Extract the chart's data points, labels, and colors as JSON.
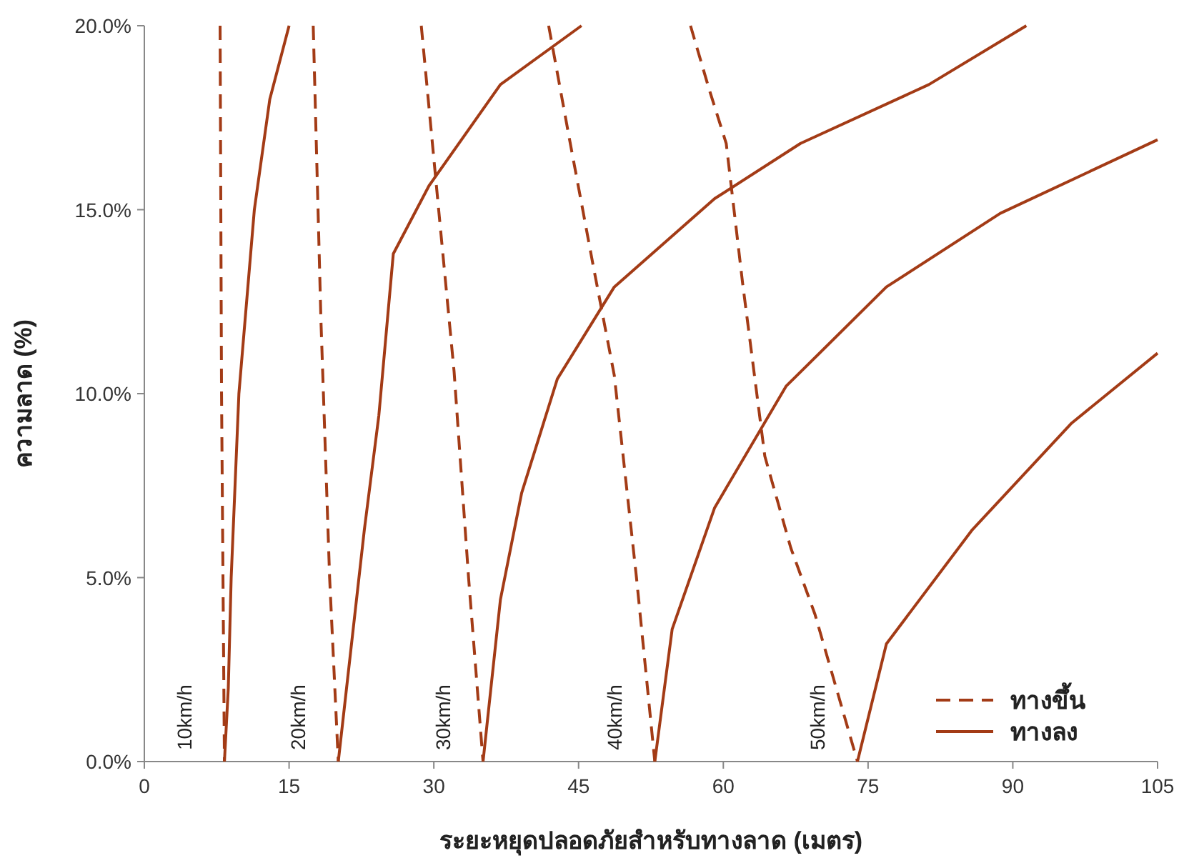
{
  "chart_data": {
    "type": "line",
    "xlabel": "ระยะหยุดปลอดภัยสำหรับทางลาด (เมตร)",
    "ylabel": "ความลาด (%)",
    "xlim": [
      0,
      105
    ],
    "ylim": [
      0,
      20
    ],
    "xticks": [
      0,
      15,
      30,
      45,
      60,
      75,
      90,
      105
    ],
    "yticks": [
      {
        "value": 0,
        "label": "0.0%"
      },
      {
        "value": 5,
        "label": "5.0%"
      },
      {
        "value": 10,
        "label": "10.0%"
      },
      {
        "value": 15,
        "label": "15.0%"
      },
      {
        "value": 20,
        "label": "20.0%"
      }
    ],
    "grid": false,
    "legend": "bottom right",
    "series": [
      {
        "name": "ทางขึ้น",
        "color": "#a33b16",
        "line_style": "dashed",
        "x": [
          7.85,
          8.0,
          8.3
        ],
        "values": [
          20,
          10,
          0
        ]
      },
      {
        "name": "ทางลง",
        "color": "#a33b16",
        "line_style": "solid",
        "x": [
          8.3,
          8.7,
          9.0,
          9.8,
          11.4,
          13,
          15
        ],
        "values": [
          0,
          2,
          5,
          10,
          15,
          18,
          20
        ]
      },
      {
        "color": "#a33b16",
        "line_style": "dashed",
        "x": [
          17.5,
          18.3,
          19.2,
          20.1
        ],
        "values": [
          20,
          12,
          5,
          0
        ]
      },
      {
        "color": "#a33b16",
        "line_style": "solid",
        "x": [
          20.1,
          21.3,
          22.8,
          24.3,
          25.8,
          29.5,
          36.9,
          45.3
        ],
        "values": [
          0,
          2.8,
          6.3,
          9.4,
          13.8,
          15.65,
          18.4,
          20
        ]
      },
      {
        "color": "#a33b16",
        "line_style": "dashed",
        "x": [
          28.7,
          30.5,
          32.1,
          33.6,
          35.1
        ],
        "values": [
          20,
          15,
          10.6,
          5,
          0
        ]
      },
      {
        "color": "#a33b16",
        "line_style": "solid",
        "x": [
          35.1,
          36.9,
          39.1,
          42.8,
          48.7,
          59.1,
          68,
          81.3,
          91.4
        ],
        "values": [
          0,
          4.4,
          7.3,
          10.4,
          12.9,
          15.3,
          16.8,
          18.4,
          20
        ]
      },
      {
        "color": "#a33b16",
        "line_style": "dashed",
        "x": [
          41.9,
          44,
          46.5,
          48.7,
          51,
          52.9
        ],
        "values": [
          20,
          17,
          13.5,
          10.5,
          5,
          0
        ]
      },
      {
        "color": "#a33b16",
        "line_style": "solid",
        "x": [
          52.9,
          54.7,
          59.1,
          66.5,
          76.9,
          88.7,
          105
        ],
        "values": [
          0,
          3.6,
          6.9,
          10.2,
          12.9,
          14.9,
          16.9
        ]
      },
      {
        "color": "#a33b16",
        "line_style": "dashed",
        "x": [
          56.6,
          58.5,
          60.3,
          62,
          64.3,
          67,
          69.5,
          73.9
        ],
        "values": [
          20,
          18.3,
          16.8,
          13,
          8.3,
          5.8,
          4.0,
          0
        ]
      },
      {
        "color": "#a33b16",
        "line_style": "solid",
        "x": [
          73.9,
          76.9,
          85.8,
          96.1,
          105
        ],
        "values": [
          0,
          3.2,
          6.3,
          9.2,
          11.1
        ]
      }
    ],
    "annotations": [
      {
        "text": "10km/h",
        "x": 8.3,
        "y": 0
      },
      {
        "text": "20km/h",
        "x": 20.1,
        "y": 0
      },
      {
        "text": "30km/h",
        "x": 35.1,
        "y": 0
      },
      {
        "text": "40km/h",
        "x": 52.9,
        "y": 0
      },
      {
        "text": "50km/h",
        "x": 73.9,
        "y": 0
      }
    ]
  }
}
